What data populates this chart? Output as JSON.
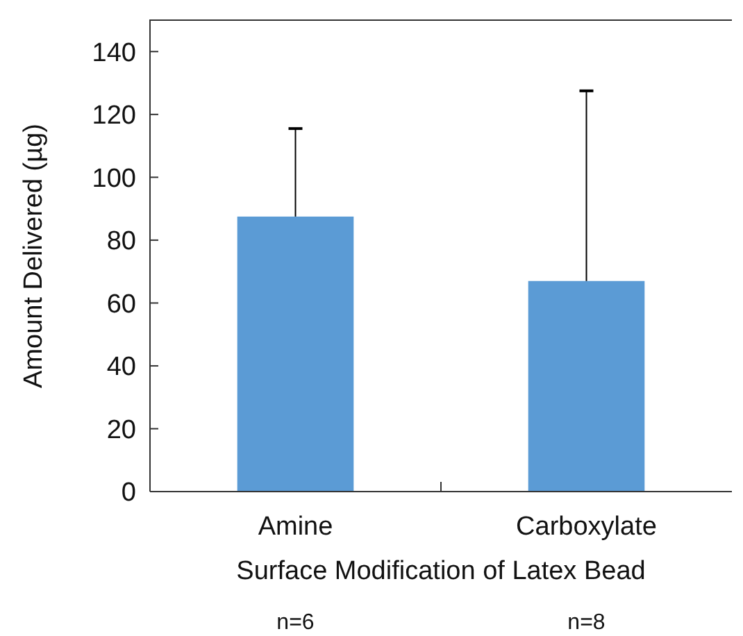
{
  "chart_data": {
    "type": "bar",
    "xlabel": "Surface Modification of Latex Bead",
    "ylabel": "Amount Delivered (µg)",
    "categories": [
      "Amine",
      "Carboxylate"
    ],
    "values": [
      87.5,
      67
    ],
    "errors": [
      [
        87.5,
        115.5
      ],
      [
        67,
        127.5
      ]
    ],
    "color": "#5b9bd5",
    "ylim": [
      0,
      150
    ],
    "yticks": [
      0,
      20,
      40,
      60,
      80,
      100,
      120,
      140
    ],
    "annotations": [
      "n=6",
      "n=8"
    ]
  }
}
